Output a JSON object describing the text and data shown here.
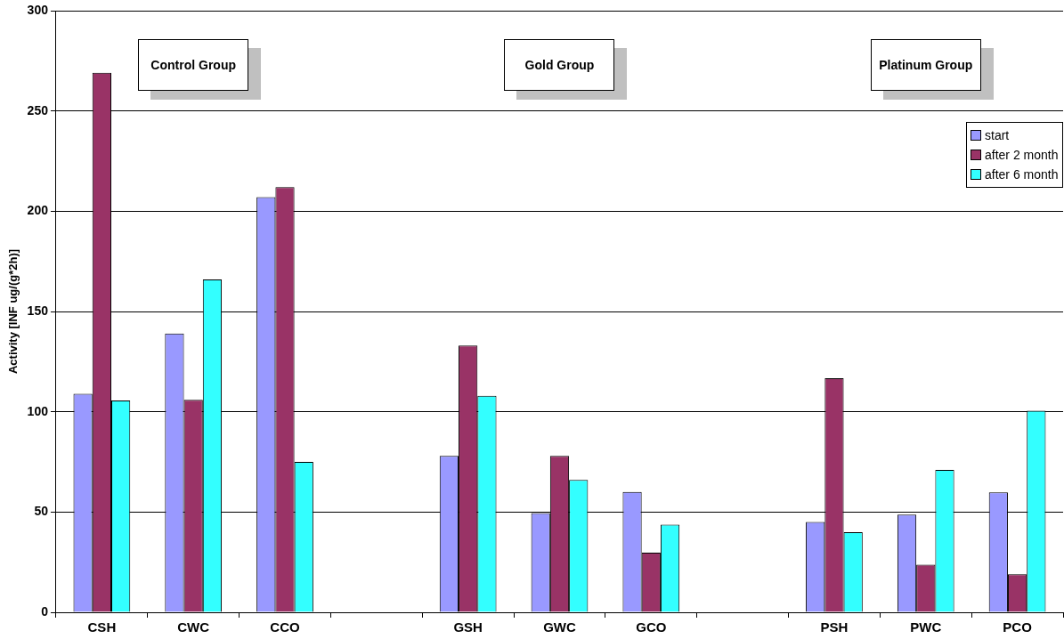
{
  "chart_data": {
    "type": "bar",
    "ylabel": "Activity [INF ug/(g*2h)]",
    "categories": [
      "CSH",
      "CWC",
      "CCO",
      null,
      "GSH",
      "GWC",
      "GCO",
      null,
      "PSH",
      "PWC",
      "PCO"
    ],
    "series": [
      {
        "name": "start",
        "color": "#9999ff",
        "values": [
          109,
          139,
          207,
          null,
          78,
          49.5,
          60,
          null,
          45,
          48.7,
          59.8
        ]
      },
      {
        "name": "after 2 month",
        "color": "#993366",
        "values": [
          269,
          106,
          212,
          null,
          133,
          78,
          29.7,
          null,
          116.7,
          23.7,
          19
        ]
      },
      {
        "name": "after 6 month",
        "color": "#33ffff",
        "values": [
          105.6,
          166,
          75,
          null,
          108,
          66,
          43.7,
          null,
          39.9,
          71,
          100.5
        ]
      }
    ],
    "ylim": [
      0,
      300
    ],
    "yticks": [
      0,
      50,
      100,
      150,
      200,
      250,
      300
    ],
    "grid": "y",
    "legend": "top right",
    "annotations": [
      "Control Group",
      "Gold Group",
      "Platinum Group"
    ]
  }
}
